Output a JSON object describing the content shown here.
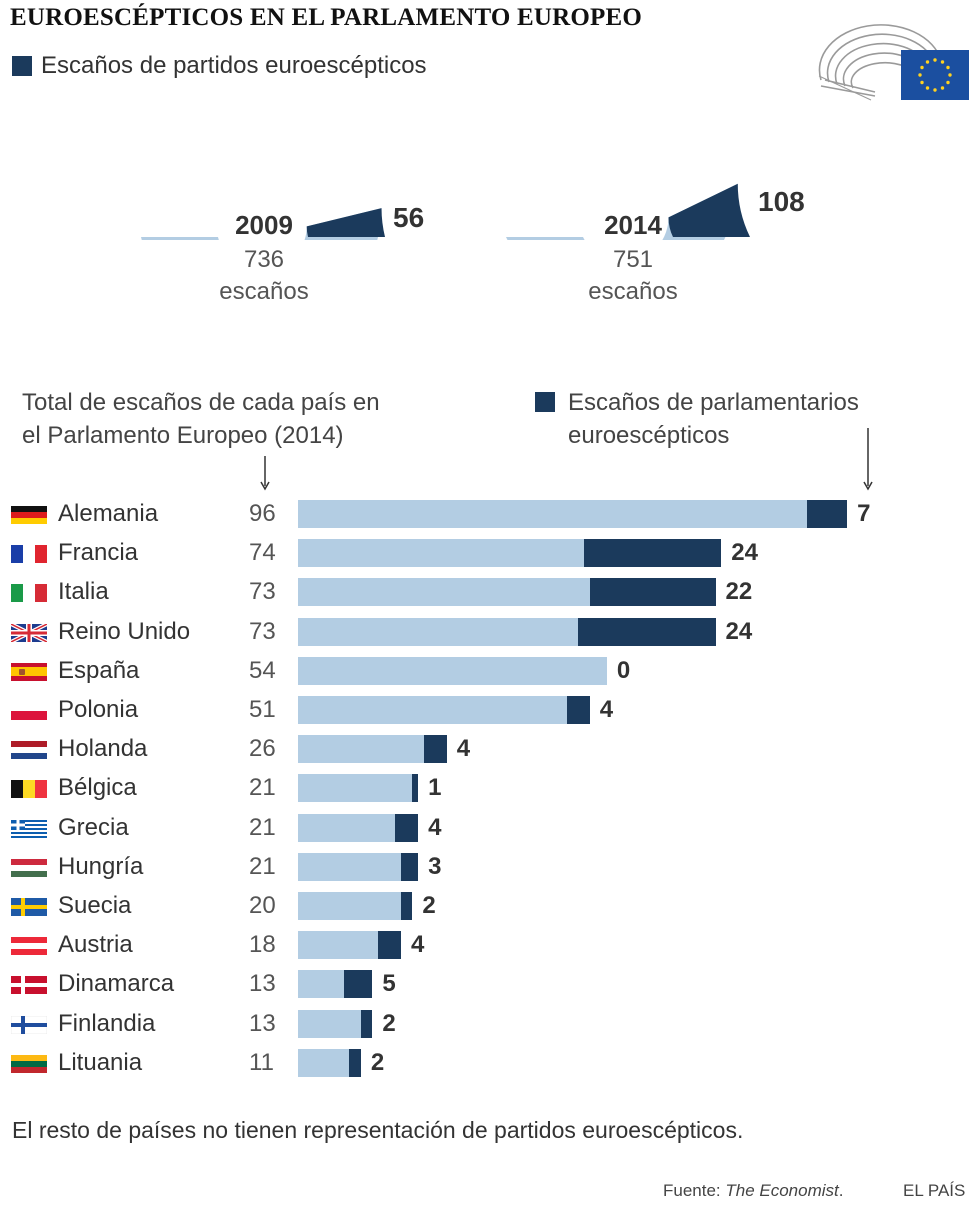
{
  "title": "EUROESCÉPTICOS EN EL PARLAMENTO EUROPEO",
  "legend_top": "Escaños de partidos euroescépticos",
  "colors": {
    "light": "#b3cde3",
    "dark": "#1b3a5c",
    "eu_blue": "#1b4fa0",
    "eu_star": "#ffd21f"
  },
  "semicircles": [
    {
      "year": "2009",
      "total": 736,
      "total_label": "736",
      "unit": "escaños",
      "euroskeptic": 56,
      "euroskeptic_label": "56"
    },
    {
      "year": "2014",
      "total": 751,
      "total_label": "751",
      "unit": "escaños",
      "euroskeptic": 108,
      "euroskeptic_label": "108"
    }
  ],
  "headers": {
    "left_line1": "Total de escaños de cada país en",
    "left_line2": "el Parlamento Europeo (2014)",
    "right_line1": "Escaños de parlamentarios",
    "right_line2": "euroescépticos"
  },
  "chart_data": {
    "type": "bar",
    "orientation": "horizontal",
    "categories": [
      "Alemania",
      "Francia",
      "Italia",
      "Reino Unido",
      "España",
      "Polonia",
      "Holanda",
      "Bélgica",
      "Grecia",
      "Hungría",
      "Suecia",
      "Austria",
      "Dinamarca",
      "Finlandia",
      "Lituania"
    ],
    "series": [
      {
        "name": "Total de escaños de cada país en el Parlamento Europeo (2014)",
        "values": [
          96,
          74,
          73,
          73,
          54,
          51,
          26,
          21,
          21,
          21,
          20,
          18,
          13,
          13,
          11
        ]
      },
      {
        "name": "Escaños de parlamentarios euroescépticos",
        "values": [
          7,
          24,
          22,
          24,
          0,
          4,
          4,
          1,
          4,
          3,
          2,
          4,
          5,
          2,
          2
        ]
      }
    ]
  },
  "rows": [
    {
      "country": "Alemania",
      "flag": "germany-flag",
      "total": "96",
      "euro": "7"
    },
    {
      "country": "Francia",
      "flag": "france-flag",
      "total": "74",
      "euro": "24"
    },
    {
      "country": "Italia",
      "flag": "italy-flag",
      "total": "73",
      "euro": "22"
    },
    {
      "country": "Reino Unido",
      "flag": "uk-flag",
      "total": "73",
      "euro": "24"
    },
    {
      "country": "España",
      "flag": "spain-flag",
      "total": "54",
      "euro": "0"
    },
    {
      "country": "Polonia",
      "flag": "poland-flag",
      "total": "51",
      "euro": "4"
    },
    {
      "country": "Holanda",
      "flag": "netherlands-flag",
      "total": "26",
      "euro": "4"
    },
    {
      "country": "Bélgica",
      "flag": "belgium-flag",
      "total": "21",
      "euro": "1"
    },
    {
      "country": "Grecia",
      "flag": "greece-flag",
      "total": "21",
      "euro": "4"
    },
    {
      "country": "Hungría",
      "flag": "hungary-flag",
      "total": "21",
      "euro": "3"
    },
    {
      "country": "Suecia",
      "flag": "sweden-flag",
      "total": "20",
      "euro": "2"
    },
    {
      "country": "Austria",
      "flag": "austria-flag",
      "total": "18",
      "euro": "4"
    },
    {
      "country": "Dinamarca",
      "flag": "denmark-flag",
      "total": "13",
      "euro": "5"
    },
    {
      "country": "Finlandia",
      "flag": "finland-flag",
      "total": "13",
      "euro": "2"
    },
    {
      "country": "Lituania",
      "flag": "lithuania-flag",
      "total": "11",
      "euro": "2"
    }
  ],
  "note": "El resto de países no tienen representación de partidos euroescépticos.",
  "source_prefix": "Fuente: ",
  "source_name": "The Economist",
  "source_suffix": ".",
  "brand": "EL PAÍS"
}
